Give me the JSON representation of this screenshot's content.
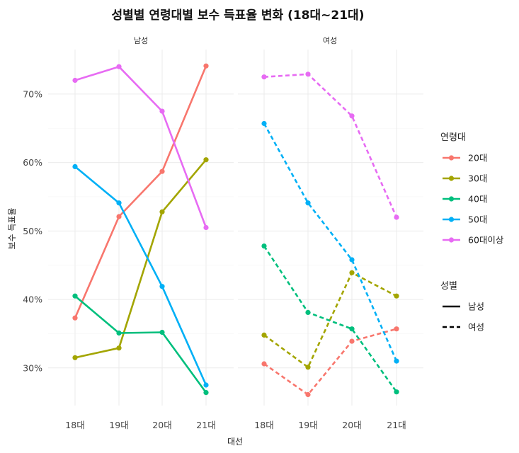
{
  "chart_data": {
    "type": "line",
    "title": "성별별 연령대별 보수 득표율 변화 (18대~21대)",
    "xlabel": "대선",
    "ylabel": "보수 득표율",
    "categories": [
      "18대",
      "19대",
      "20대",
      "21대"
    ],
    "ylim": [
      0.245,
      0.765
    ],
    "yticks": [
      0.3,
      0.4,
      0.5,
      0.6,
      0.7
    ],
    "ytick_labels": [
      "30%",
      "40%",
      "50%",
      "60%",
      "70%"
    ],
    "grid": true,
    "facet_labels": [
      "남성",
      "여성"
    ],
    "legend_placement": "right",
    "legend_color_title": "연령대",
    "legend_linetype_title": "성별",
    "age_groups": [
      {
        "label": "20대",
        "color": "#F8766D"
      },
      {
        "label": "30대",
        "color": "#A3A500"
      },
      {
        "label": "40대",
        "color": "#00BF7D"
      },
      {
        "label": "50대",
        "color": "#00B0F6"
      },
      {
        "label": "60대이상",
        "color": "#E76BF3"
      }
    ],
    "linetypes": [
      {
        "label": "남성",
        "dash": "solid"
      },
      {
        "label": "여성",
        "dash": "dashed"
      }
    ],
    "series": [
      {
        "facet": "남성",
        "age": "20대",
        "values": [
          0.373,
          0.521,
          0.587,
          0.741
        ]
      },
      {
        "facet": "남성",
        "age": "30대",
        "values": [
          0.315,
          0.329,
          0.528,
          0.604
        ]
      },
      {
        "facet": "남성",
        "age": "40대",
        "values": [
          0.405,
          0.351,
          0.352,
          0.264
        ]
      },
      {
        "facet": "남성",
        "age": "50대",
        "values": [
          0.594,
          0.541,
          0.419,
          0.275
        ]
      },
      {
        "facet": "남성",
        "age": "60대이상",
        "values": [
          0.72,
          0.74,
          0.675,
          0.505
        ]
      },
      {
        "facet": "여성",
        "age": "20대",
        "values": [
          0.306,
          0.261,
          0.339,
          0.357
        ]
      },
      {
        "facet": "여성",
        "age": "30대",
        "values": [
          0.348,
          0.301,
          0.439,
          0.405
        ]
      },
      {
        "facet": "여성",
        "age": "40대",
        "values": [
          0.478,
          0.381,
          0.357,
          0.265
        ]
      },
      {
        "facet": "여성",
        "age": "50대",
        "values": [
          0.657,
          0.541,
          0.458,
          0.31
        ]
      },
      {
        "facet": "여성",
        "age": "60대이상",
        "values": [
          0.725,
          0.729,
          0.668,
          0.52
        ]
      }
    ]
  }
}
